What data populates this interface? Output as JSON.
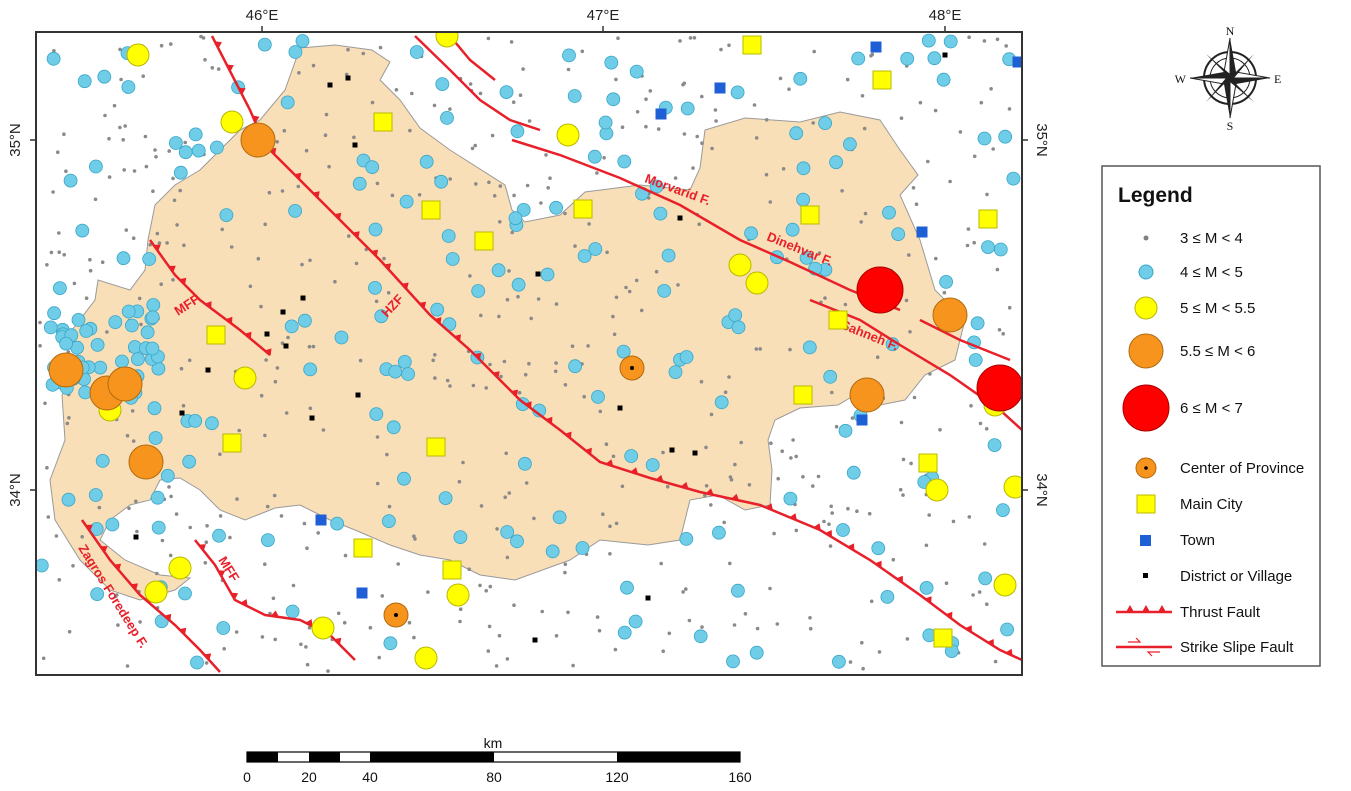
{
  "map": {
    "lon_ticks": [
      "46°E",
      "47°E",
      "48°E"
    ],
    "lat_ticks": [
      "35°N",
      "34°N"
    ],
    "faults": {
      "mff_north": "MFF",
      "hzf": "HZF",
      "morvarid": "Morvarid F.",
      "dinehvar": "Dinehvar F.",
      "sahneh": "Sahneh F.",
      "mff_south": "MFF",
      "zagros": "Zagros Foredeep F."
    },
    "colors": {
      "province_fill": "#f9dfb7",
      "fault": "#e8202a",
      "m3_4": "#808080",
      "m4_5": "#6fcde7",
      "m5_55": "#ffff00",
      "m55_6": "#f7941d",
      "m6_7": "#ff0000",
      "main_city": "#ffff00",
      "town": "#1f5fd6",
      "village": "#000000"
    }
  },
  "compass": {
    "n": "N",
    "s": "S",
    "e": "E",
    "w": "W"
  },
  "legend": {
    "title": "Legend",
    "items": [
      {
        "label": "3 ≤ M < 4",
        "symbol": "small-gray-dot-icon"
      },
      {
        "label": "4 ≤ M < 5",
        "symbol": "cyan-circle-icon"
      },
      {
        "label": "5 ≤ M < 5.5",
        "symbol": "yellow-circle-icon"
      },
      {
        "label": "5.5 ≤ M < 6",
        "symbol": "orange-circle-icon"
      },
      {
        "label": "6 ≤ M < 7",
        "symbol": "red-circle-icon"
      },
      {
        "label": "Center of Province",
        "symbol": "orange-star-circle-icon"
      },
      {
        "label": "Main City",
        "symbol": "yellow-square-icon"
      },
      {
        "label": "Town",
        "symbol": "blue-square-icon"
      },
      {
        "label": "District or Village",
        "symbol": "black-dot-icon"
      },
      {
        "label": "Thrust Fault",
        "symbol": "thrust-fault-line-icon"
      },
      {
        "label": "Strike Slipe Fault",
        "symbol": "strike-slip-fault-line-icon"
      }
    ]
  },
  "scalebar": {
    "unit": "km",
    "labels": [
      "0",
      "20",
      "40",
      "80",
      "120",
      "160"
    ]
  }
}
